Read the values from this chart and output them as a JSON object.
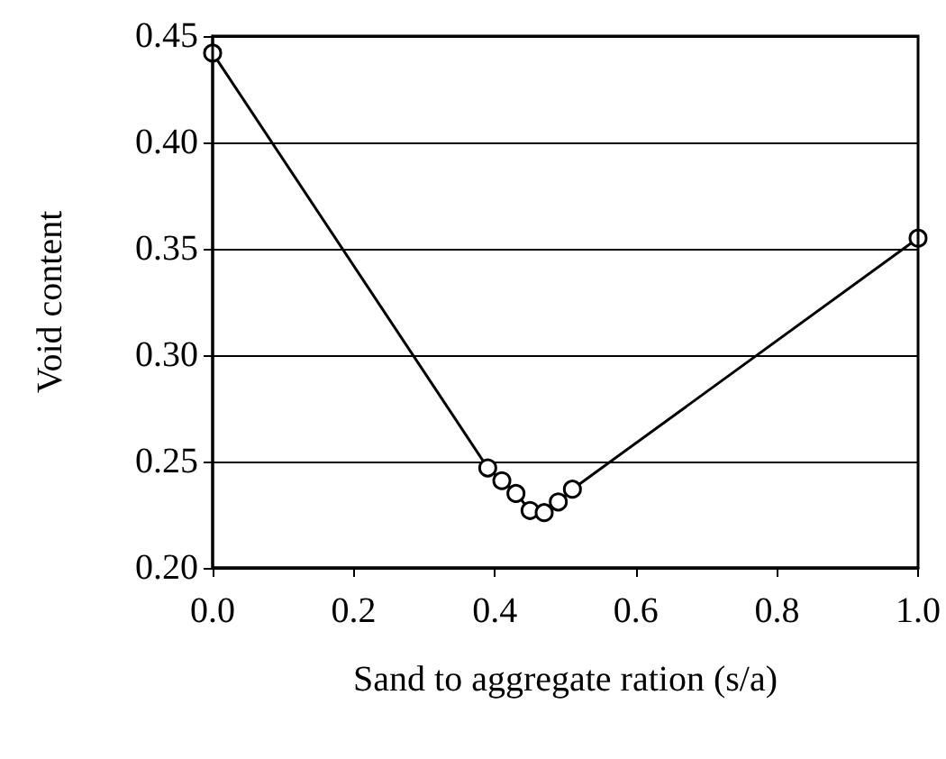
{
  "chart_data": {
    "type": "line",
    "xlabel": "Sand to aggregate ration (s/a)",
    "ylabel": "Void content",
    "x": [
      0,
      0.39,
      0.41,
      0.43,
      0.45,
      0.47,
      0.49,
      0.51,
      1.0
    ],
    "series": [
      {
        "color": "#000000",
        "values": [
          0.442,
          0.247,
          0.241,
          0.235,
          0.227,
          0.226,
          0.231,
          0.237,
          0.355
        ]
      }
    ],
    "xlim": [
      0,
      1.0
    ],
    "xticks": [
      {
        "value": 0,
        "label": "0.0"
      },
      0.2,
      0.4,
      0.6,
      0.8,
      {
        "value": 1,
        "label": "1.0"
      }
    ],
    "ylim": [
      0.2,
      0.45
    ],
    "yticks": [
      {
        "value": 0.2,
        "label": "0.20"
      },
      0.25,
      {
        "value": 0.3,
        "label": "0.30"
      },
      0.35,
      {
        "value": 0.4,
        "label": "0.40"
      },
      0.45
    ],
    "grid": "y",
    "marker": "circle",
    "line_style": "solid"
  }
}
